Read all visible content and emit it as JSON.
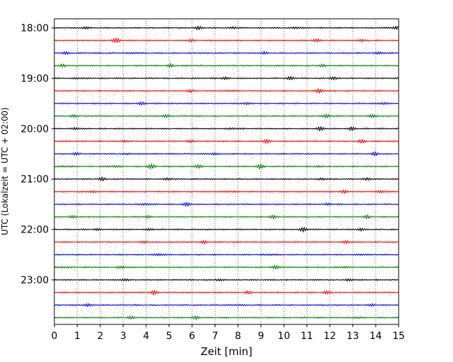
{
  "chart_data": {
    "type": "line",
    "title": "",
    "xlabel": "Zeit  [min]",
    "ylabel": "UTC (Lokalzeit = UTC + 02:00)",
    "xlim": [
      0,
      15
    ],
    "x_ticks": [
      "0",
      "1",
      "2",
      "3",
      "4",
      "5",
      "6",
      "7",
      "8",
      "9",
      "10",
      "11",
      "12",
      "13",
      "14",
      "15"
    ],
    "y_ticks": [
      "18:00",
      "19:00",
      "20:00",
      "21:00",
      "22:00",
      "23:00"
    ],
    "grid": "vertical dotted at each minute",
    "trace_minutes": 15,
    "trace_colors": [
      "#000000",
      "#ff0000",
      "#0000ff",
      "#008000"
    ],
    "traces": [
      {
        "start": "18:00",
        "bursts": [
          [
            1.3,
            0.5
          ],
          [
            6.3,
            0.6
          ],
          [
            7.9,
            0.7
          ],
          [
            10.6,
            0.6
          ],
          [
            14.8,
            0.8
          ]
        ]
      },
      {
        "start": "18:15",
        "bursts": [
          [
            2.7,
            0.8
          ],
          [
            5.9,
            0.5
          ],
          [
            11.4,
            0.5
          ],
          [
            13.3,
            0.5
          ]
        ]
      },
      {
        "start": "18:30",
        "bursts": [
          [
            0.5,
            0.4
          ],
          [
            3.5,
            0.4
          ],
          [
            9.1,
            0.5
          ],
          [
            14.2,
            0.6
          ]
        ]
      },
      {
        "start": "18:45",
        "bursts": [
          [
            0.4,
            0.5
          ],
          [
            5.1,
            0.6
          ],
          [
            11.6,
            0.6
          ]
        ]
      },
      {
        "start": "19:00",
        "bursts": [
          [
            1.1,
            0.4
          ],
          [
            7.4,
            0.5
          ],
          [
            10.3,
            0.6
          ],
          [
            12.1,
            0.6
          ]
        ]
      },
      {
        "start": "19:15",
        "bursts": [
          [
            5.9,
            0.5
          ],
          [
            7.7,
            0.5
          ],
          [
            11.6,
            1.0
          ]
        ]
      },
      {
        "start": "19:30",
        "bursts": [
          [
            3.8,
            0.5
          ],
          [
            8.3,
            0.5
          ],
          [
            14.3,
            0.7
          ]
        ]
      },
      {
        "start": "19:45",
        "bursts": [
          [
            0.8,
            0.5
          ],
          [
            4.8,
            0.6
          ],
          [
            11.9,
            0.8
          ],
          [
            13.9,
            0.7
          ]
        ]
      },
      {
        "start": "20:00",
        "bursts": [
          [
            1.0,
            0.6
          ],
          [
            7.8,
            0.5
          ],
          [
            11.6,
            0.7
          ],
          [
            13.0,
            0.7
          ]
        ]
      },
      {
        "start": "20:15",
        "bursts": [
          [
            3.0,
            0.5
          ],
          [
            5.9,
            0.4
          ],
          [
            9.2,
            0.8
          ],
          [
            13.4,
            0.6
          ]
        ]
      },
      {
        "start": "20:30",
        "bursts": [
          [
            0.9,
            0.5
          ],
          [
            3.3,
            0.4
          ],
          [
            6.9,
            0.5
          ],
          [
            14.0,
            0.7
          ]
        ]
      },
      {
        "start": "20:45",
        "bursts": [
          [
            0.5,
            0.5
          ],
          [
            2.6,
            0.6
          ],
          [
            4.2,
            0.9
          ],
          [
            6.3,
            0.6
          ],
          [
            9.0,
            0.8
          ],
          [
            11.4,
            0.5
          ]
        ]
      },
      {
        "start": "21:00",
        "bursts": [
          [
            2.1,
            0.6
          ],
          [
            5.0,
            0.6
          ],
          [
            11.7,
            0.5
          ],
          [
            13.7,
            0.6
          ]
        ]
      },
      {
        "start": "21:15",
        "bursts": [
          [
            1.6,
            0.5
          ],
          [
            7.6,
            0.5
          ],
          [
            12.6,
            0.5
          ],
          [
            14.3,
            0.7
          ]
        ]
      },
      {
        "start": "21:30",
        "bursts": [
          [
            4.0,
            0.7
          ],
          [
            5.8,
            0.7
          ],
          [
            12.0,
            0.5
          ]
        ]
      },
      {
        "start": "21:45",
        "bursts": [
          [
            0.8,
            0.4
          ],
          [
            4.0,
            0.5
          ],
          [
            9.5,
            0.6
          ],
          [
            13.6,
            0.6
          ]
        ]
      },
      {
        "start": "22:00",
        "bursts": [
          [
            1.8,
            0.4
          ],
          [
            4.2,
            0.5
          ],
          [
            10.9,
            0.9
          ],
          [
            13.3,
            0.5
          ]
        ]
      },
      {
        "start": "22:15",
        "bursts": [
          [
            4.0,
            0.5
          ],
          [
            6.5,
            0.5
          ],
          [
            12.8,
            0.6
          ]
        ]
      },
      {
        "start": "22:30",
        "bursts": [
          [
            4.6,
            0.8
          ],
          [
            9.4,
            0.5
          ],
          [
            13.4,
            0.5
          ]
        ]
      },
      {
        "start": "22:45",
        "bursts": [
          [
            0.4,
            0.5
          ],
          [
            3.0,
            0.6
          ],
          [
            9.7,
            0.8
          ],
          [
            12.6,
            0.5
          ]
        ]
      },
      {
        "start": "23:00",
        "bursts": [
          [
            3.0,
            0.7
          ],
          [
            7.1,
            0.5
          ],
          [
            12.9,
            0.5
          ]
        ]
      },
      {
        "start": "23:15",
        "bursts": [
          [
            4.3,
            0.9
          ],
          [
            8.4,
            0.5
          ],
          [
            11.9,
            0.6
          ]
        ]
      },
      {
        "start": "23:30",
        "bursts": [
          [
            1.4,
            0.6
          ],
          [
            8.0,
            0.4
          ],
          [
            13.9,
            0.5
          ]
        ]
      },
      {
        "start": "23:45",
        "bursts": [
          [
            3.3,
            0.5
          ],
          [
            6.2,
            0.6
          ],
          [
            13.2,
            0.5
          ]
        ]
      }
    ]
  }
}
